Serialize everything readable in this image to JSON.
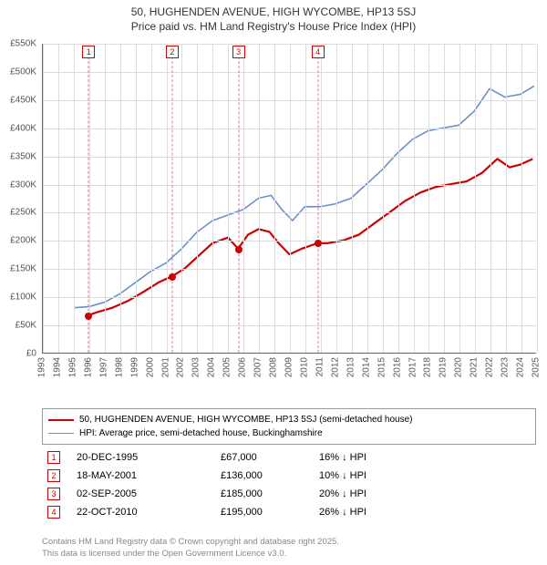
{
  "title": {
    "line1": "50, HUGHENDEN AVENUE, HIGH WYCOMBE, HP13 5SJ",
    "line2": "Price paid vs. HM Land Registry's House Price Index (HPI)"
  },
  "chart": {
    "type": "line",
    "plot_bg": "#ffffff",
    "grid_color": "#dcdcdc",
    "axis_color": "#666666",
    "x_years": [
      1993,
      1994,
      1995,
      1996,
      1997,
      1998,
      1999,
      2000,
      2001,
      2002,
      2003,
      2004,
      2005,
      2006,
      2007,
      2008,
      2009,
      2010,
      2011,
      2012,
      2013,
      2014,
      2015,
      2016,
      2017,
      2018,
      2019,
      2020,
      2021,
      2022,
      2023,
      2024,
      2025
    ],
    "xmin": 1993,
    "xmax": 2025,
    "ymin": 0,
    "ymax": 550000,
    "y_ticks": [
      0,
      50000,
      100000,
      150000,
      200000,
      250000,
      300000,
      350000,
      400000,
      450000,
      500000,
      550000
    ],
    "y_tick_labels": [
      "£0",
      "£50K",
      "£100K",
      "£150K",
      "£200K",
      "£250K",
      "£300K",
      "£350K",
      "£400K",
      "£450K",
      "£500K",
      "£550K"
    ],
    "series": [
      {
        "name": "price_paid",
        "label": "50, HUGHENDEN AVENUE, HIGH WYCOMBE, HP13 5SJ (semi-detached house)",
        "color": "#cc0000",
        "width": 2.2,
        "points": [
          [
            1995.97,
            67000
          ],
          [
            1996.5,
            72000
          ],
          [
            1997.5,
            80000
          ],
          [
            1998.5,
            92000
          ],
          [
            1999.5,
            108000
          ],
          [
            2000.5,
            125000
          ],
          [
            2001.38,
            136000
          ],
          [
            2002.2,
            150000
          ],
          [
            2003.0,
            170000
          ],
          [
            2004.0,
            195000
          ],
          [
            2005.0,
            205000
          ],
          [
            2005.67,
            185000
          ],
          [
            2006.3,
            210000
          ],
          [
            2007.0,
            220000
          ],
          [
            2007.7,
            215000
          ],
          [
            2008.3,
            195000
          ],
          [
            2009.0,
            175000
          ],
          [
            2009.8,
            185000
          ],
          [
            2010.81,
            195000
          ],
          [
            2011.5,
            195000
          ],
          [
            2012.5,
            200000
          ],
          [
            2013.5,
            210000
          ],
          [
            2014.5,
            230000
          ],
          [
            2015.5,
            250000
          ],
          [
            2016.5,
            270000
          ],
          [
            2017.5,
            285000
          ],
          [
            2018.5,
            295000
          ],
          [
            2019.5,
            300000
          ],
          [
            2020.5,
            305000
          ],
          [
            2021.5,
            320000
          ],
          [
            2022.5,
            345000
          ],
          [
            2023.3,
            330000
          ],
          [
            2024.0,
            335000
          ],
          [
            2024.8,
            345000
          ]
        ]
      },
      {
        "name": "hpi",
        "label": "HPI: Average price, semi-detached house, Buckinghamshire",
        "color": "#6b8fc9",
        "width": 1.6,
        "points": [
          [
            1995.0,
            80000
          ],
          [
            1996.0,
            82000
          ],
          [
            1997.0,
            90000
          ],
          [
            1998.0,
            105000
          ],
          [
            1999.0,
            125000
          ],
          [
            2000.0,
            145000
          ],
          [
            2001.0,
            160000
          ],
          [
            2002.0,
            185000
          ],
          [
            2003.0,
            215000
          ],
          [
            2004.0,
            235000
          ],
          [
            2005.0,
            245000
          ],
          [
            2006.0,
            255000
          ],
          [
            2007.0,
            275000
          ],
          [
            2007.8,
            280000
          ],
          [
            2008.5,
            255000
          ],
          [
            2009.2,
            235000
          ],
          [
            2010.0,
            260000
          ],
          [
            2011.0,
            260000
          ],
          [
            2012.0,
            265000
          ],
          [
            2013.0,
            275000
          ],
          [
            2014.0,
            300000
          ],
          [
            2015.0,
            325000
          ],
          [
            2016.0,
            355000
          ],
          [
            2017.0,
            380000
          ],
          [
            2018.0,
            395000
          ],
          [
            2019.0,
            400000
          ],
          [
            2020.0,
            405000
          ],
          [
            2021.0,
            430000
          ],
          [
            2022.0,
            470000
          ],
          [
            2023.0,
            455000
          ],
          [
            2024.0,
            460000
          ],
          [
            2024.9,
            475000
          ]
        ]
      }
    ],
    "sale_markers": [
      {
        "n": "1",
        "x": 1995.97,
        "y": 67000
      },
      {
        "n": "2",
        "x": 2001.38,
        "y": 136000
      },
      {
        "n": "3",
        "x": 2005.67,
        "y": 185000
      },
      {
        "n": "4",
        "x": 2010.81,
        "y": 195000
      }
    ],
    "marker_border": "#cc0000",
    "marker_dash_color": "#dd7799"
  },
  "legend": {
    "items": [
      {
        "color": "#cc0000",
        "width": 2.2,
        "label": "50, HUGHENDEN AVENUE, HIGH WYCOMBE, HP13 5SJ (semi-detached house)"
      },
      {
        "color": "#6b8fc9",
        "width": 1.6,
        "label": "HPI: Average price, semi-detached house, Buckinghamshire"
      }
    ]
  },
  "sales": [
    {
      "n": "1",
      "date": "20-DEC-1995",
      "price": "£67,000",
      "diff": "16% ↓ HPI"
    },
    {
      "n": "2",
      "date": "18-MAY-2001",
      "price": "£136,000",
      "diff": "10% ↓ HPI"
    },
    {
      "n": "3",
      "date": "02-SEP-2005",
      "price": "£185,000",
      "diff": "20% ↓ HPI"
    },
    {
      "n": "4",
      "date": "22-OCT-2010",
      "price": "£195,000",
      "diff": "26% ↓ HPI"
    }
  ],
  "attribution": {
    "line1": "Contains HM Land Registry data © Crown copyright and database right 2025.",
    "line2": "This data is licensed under the Open Government Licence v3.0."
  }
}
